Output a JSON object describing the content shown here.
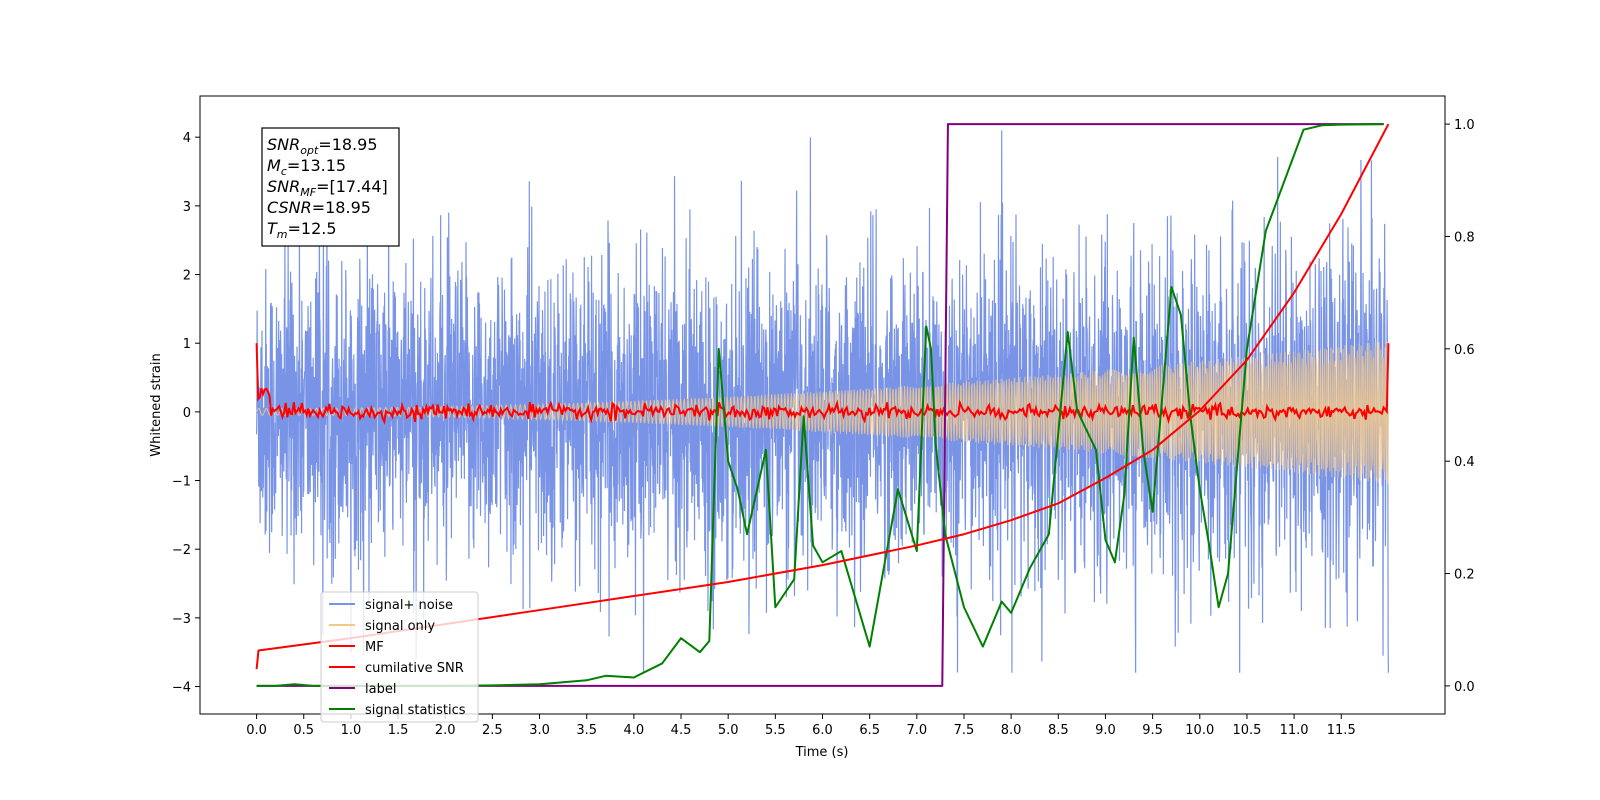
{
  "chart_data": {
    "type": "line",
    "xlabel": "Time (s)",
    "ylabel": "Whitened strain",
    "xlim": [
      -0.6,
      12.6
    ],
    "ylim": [
      -4.4,
      4.6
    ],
    "ylim_right": [
      -0.05,
      1.05
    ],
    "x_ticks": [
      "0.0",
      "0.5",
      "1.0",
      "1.5",
      "2.0",
      "2.5",
      "3.0",
      "3.5",
      "4.0",
      "4.5",
      "5.0",
      "5.5",
      "6.0",
      "6.5",
      "7.0",
      "7.5",
      "8.0",
      "8.5",
      "9.0",
      "9.5",
      "10.0",
      "10.5",
      "11.0",
      "11.5"
    ],
    "y_ticks_left": [
      "−4",
      "−3",
      "−2",
      "−1",
      "0",
      "1",
      "2",
      "3",
      "4"
    ],
    "y_ticks_right": [
      "0.0",
      "0.2",
      "0.4",
      "0.6",
      "0.8",
      "1.0"
    ],
    "legend_placement": "lower-left",
    "annotation": {
      "lines": [
        {
          "base": "SNR",
          "sub": "opt",
          "value": "=18.95"
        },
        {
          "base": "M",
          "sub": "c",
          "value": "=13.15"
        },
        {
          "base": "SNR",
          "sub": "MF",
          "value": "=[17.44]"
        },
        {
          "base": "CSNR",
          "sub": "",
          "value": "=18.95"
        },
        {
          "base": "T",
          "sub": "m",
          "value": "=12.5"
        }
      ]
    },
    "series": [
      {
        "name": "signal+ noise",
        "color": "#7994e6",
        "axis": "left",
        "kind": "noise",
        "duration": 12.0,
        "noise_sigma": 1.05,
        "envelope_max": 2.6
      },
      {
        "name": "signal only",
        "color": "#f5c98a",
        "axis": "left",
        "kind": "chirp",
        "amplitude_start": 0.05,
        "amplitude_end": 1.05
      },
      {
        "name": "MF",
        "color": "#ff0000",
        "axis": "left",
        "kind": "mf",
        "start_value": 1.0,
        "end_value": 1.0,
        "fluctuation": 0.05
      },
      {
        "name": "cumilative SNR",
        "color": "#ff0000",
        "axis": "right",
        "x": [
          0.0,
          0.02,
          1,
          2,
          3,
          4,
          5,
          6,
          7,
          7.5,
          8,
          8.5,
          9,
          9.5,
          10,
          10.5,
          11,
          11.5,
          12.0
        ],
        "y": [
          0.03,
          0.063,
          0.085,
          0.11,
          0.135,
          0.16,
          0.185,
          0.215,
          0.25,
          0.27,
          0.295,
          0.325,
          0.37,
          0.42,
          0.49,
          0.58,
          0.7,
          0.84,
          1.0
        ]
      },
      {
        "name": "label",
        "color": "#800080",
        "axis": "right",
        "x": [
          0.0,
          7.27,
          7.33,
          11.95
        ],
        "y": [
          0.0,
          0.0,
          1.0,
          1.0
        ]
      },
      {
        "name": "signal statistics",
        "color": "#008000",
        "axis": "right",
        "x": [
          0.0,
          0.2,
          0.4,
          0.6,
          1.0,
          1.5,
          2.0,
          2.5,
          3.0,
          3.5,
          3.7,
          4.0,
          4.3,
          4.5,
          4.7,
          4.8,
          4.9,
          5.0,
          5.1,
          5.2,
          5.4,
          5.5,
          5.7,
          5.8,
          5.9,
          6.0,
          6.2,
          6.5,
          6.8,
          7.0,
          7.1,
          7.15,
          7.2,
          7.3,
          7.5,
          7.7,
          7.9,
          8.0,
          8.2,
          8.4,
          8.6,
          8.7,
          8.9,
          9.0,
          9.1,
          9.2,
          9.3,
          9.4,
          9.5,
          9.7,
          9.8,
          9.9,
          10.0,
          10.1,
          10.2,
          10.3,
          10.5,
          10.7,
          10.9,
          11.1,
          11.3,
          11.5,
          11.95
        ],
        "y": [
          0.0,
          0.0,
          0.003,
          0.0,
          0.0,
          0.0,
          0.0,
          0.001,
          0.003,
          0.01,
          0.018,
          0.015,
          0.04,
          0.085,
          0.06,
          0.08,
          0.6,
          0.4,
          0.35,
          0.27,
          0.42,
          0.14,
          0.19,
          0.48,
          0.25,
          0.22,
          0.24,
          0.07,
          0.35,
          0.24,
          0.64,
          0.6,
          0.43,
          0.27,
          0.14,
          0.07,
          0.15,
          0.13,
          0.21,
          0.27,
          0.63,
          0.49,
          0.42,
          0.26,
          0.22,
          0.34,
          0.62,
          0.42,
          0.31,
          0.71,
          0.66,
          0.48,
          0.35,
          0.25,
          0.14,
          0.2,
          0.6,
          0.81,
          0.9,
          0.99,
          0.998,
          0.999,
          1.0
        ]
      }
    ]
  }
}
